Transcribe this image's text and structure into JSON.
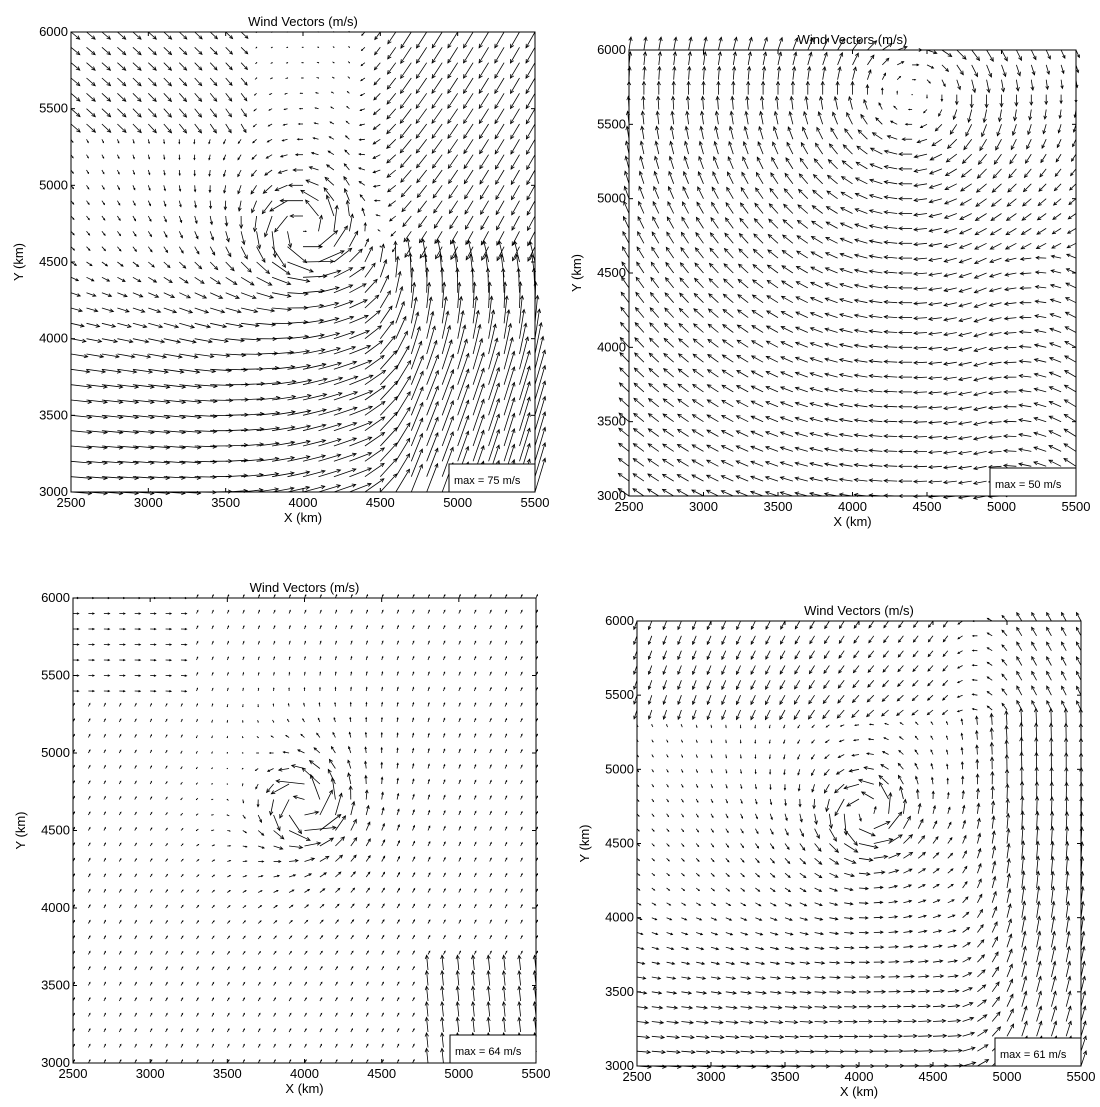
{
  "chart_data": [
    {
      "type": "quiver",
      "title": "Wind Vectors (m/s)",
      "xlabel": "X (km)",
      "ylabel": "Y (km)",
      "xlim": [
        2500,
        5500
      ],
      "ylim": [
        3000,
        6000
      ],
      "xticks": [
        "2500",
        "3000",
        "3500",
        "4000",
        "4500",
        "5000",
        "5500"
      ],
      "yticks": [
        "3000",
        "3500",
        "4000",
        "4500",
        "5000",
        "5500",
        "6000"
      ],
      "max_label": "max = 75 m/s",
      "max_speed": 75,
      "grid_spacing_km": 100,
      "vortex_center": [
        4000,
        4700
      ],
      "field": "strong southwesterly flow below 4500 km, cyclonic vortex near (4000, 4700), northerly flow east of 4500 km"
    },
    {
      "type": "quiver",
      "title": "Wind Vectors (m/s)",
      "xlabel": "X (km)",
      "ylabel": "Y (km)",
      "xlim": [
        2500,
        5500
      ],
      "ylim": [
        3000,
        6000
      ],
      "xticks": [
        "2500",
        "3000",
        "3500",
        "4000",
        "4500",
        "5000",
        "5500"
      ],
      "yticks": [
        "3000",
        "3500",
        "4000",
        "4500",
        "5000",
        "5500",
        "6000"
      ],
      "max_label": "max = 50 m/s",
      "max_speed": 50,
      "grid_spacing_km": 100,
      "vortex_center": [
        4500,
        5600
      ],
      "field": "broad anticyclonic turn: easterly flow at bottom-left, southerly/northerly flow along right side, northwesterly flow at top-left"
    },
    {
      "type": "quiver",
      "title": "Wind Vectors (m/s)",
      "xlabel": "X (km)",
      "ylabel": "Y (km)",
      "xlim": [
        2500,
        5500
      ],
      "ylim": [
        3000,
        6000
      ],
      "xticks": [
        "2500",
        "3000",
        "3500",
        "4000",
        "4500",
        "5000",
        "5500"
      ],
      "yticks": [
        "3000",
        "3500",
        "4000",
        "4500",
        "5000",
        "5500",
        "6000"
      ],
      "max_label": "max = 64 m/s",
      "max_speed": 64,
      "grid_spacing_km": 100,
      "vortex_center": [
        4000,
        4650
      ],
      "field": "weak background flow with compact cyclonic vortex near (4000, 4650), southerly flow in lower right"
    },
    {
      "type": "quiver",
      "title": "Wind Vectors (m/s)",
      "xlabel": "X (km)",
      "ylabel": "Y (km)",
      "xlim": [
        2500,
        5500
      ],
      "ylim": [
        3000,
        6000
      ],
      "xticks": [
        "2500",
        "3000",
        "3500",
        "4000",
        "4500",
        "5000",
        "5500"
      ],
      "yticks": [
        "3000",
        "3500",
        "4000",
        "4500",
        "5000",
        "5500",
        "6000"
      ],
      "max_label": "max = 61 m/s",
      "max_speed": 61,
      "grid_spacing_km": 100,
      "vortex_center": [
        4050,
        4700
      ],
      "field": "easterly flow at bottom, cyclonic vortex near (4050, 4700), southerly flow along right side"
    }
  ]
}
